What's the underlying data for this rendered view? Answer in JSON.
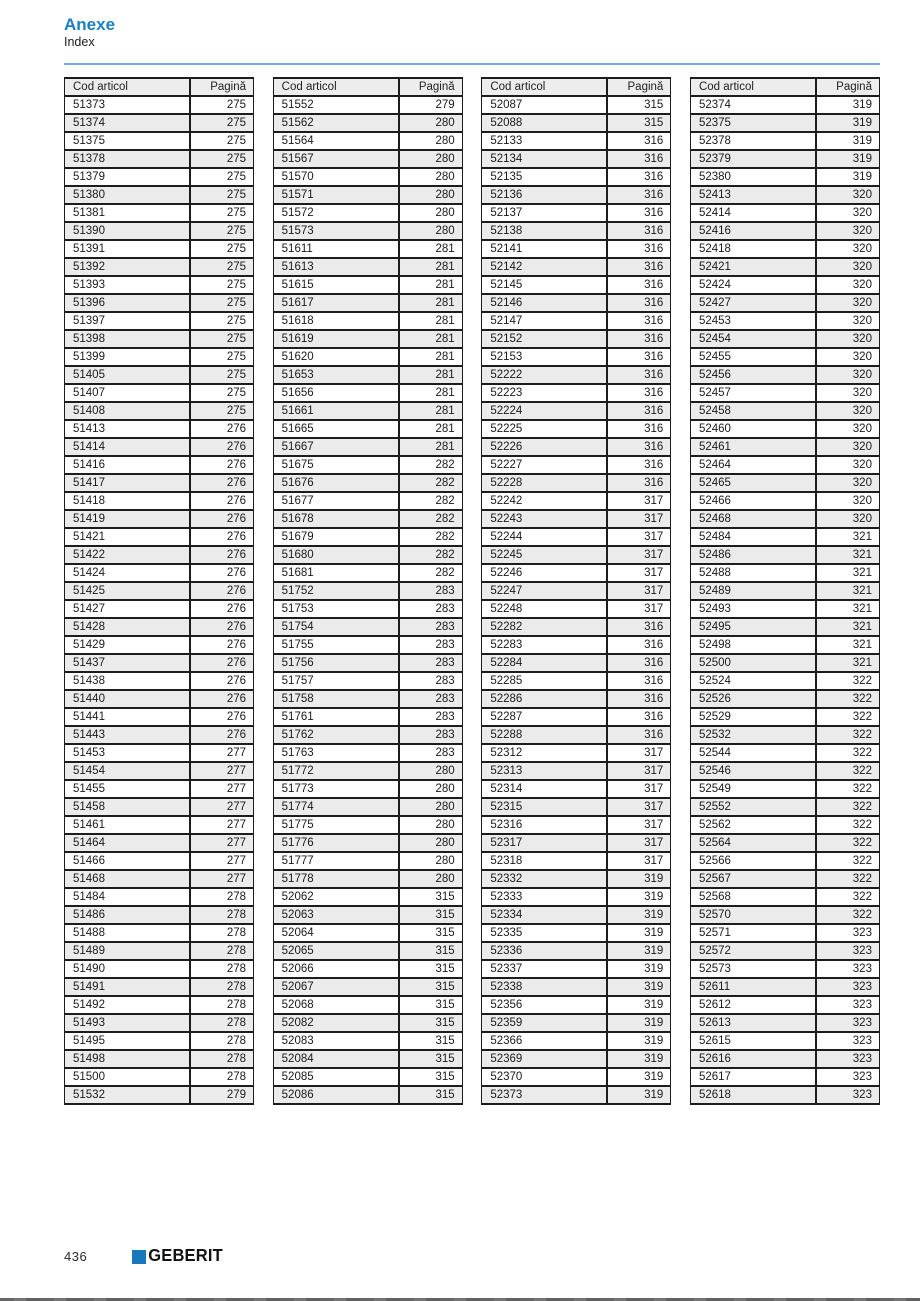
{
  "header": {
    "title": "Anexe",
    "subtitle": "Index"
  },
  "table_headers": {
    "code": "Cod articol",
    "page": "Pagină"
  },
  "tables": [
    {
      "rows": [
        [
          "51373",
          "275"
        ],
        [
          "51374",
          "275"
        ],
        [
          "51375",
          "275"
        ],
        [
          "51378",
          "275"
        ],
        [
          "51379",
          "275"
        ],
        [
          "51380",
          "275"
        ],
        [
          "51381",
          "275"
        ],
        [
          "51390",
          "275"
        ],
        [
          "51391",
          "275"
        ],
        [
          "51392",
          "275"
        ],
        [
          "51393",
          "275"
        ],
        [
          "51396",
          "275"
        ],
        [
          "51397",
          "275"
        ],
        [
          "51398",
          "275"
        ],
        [
          "51399",
          "275"
        ],
        [
          "51405",
          "275"
        ],
        [
          "51407",
          "275"
        ],
        [
          "51408",
          "275"
        ],
        [
          "51413",
          "276"
        ],
        [
          "51414",
          "276"
        ],
        [
          "51416",
          "276"
        ],
        [
          "51417",
          "276"
        ],
        [
          "51418",
          "276"
        ],
        [
          "51419",
          "276"
        ],
        [
          "51421",
          "276"
        ],
        [
          "51422",
          "276"
        ],
        [
          "51424",
          "276"
        ],
        [
          "51425",
          "276"
        ],
        [
          "51427",
          "276"
        ],
        [
          "51428",
          "276"
        ],
        [
          "51429",
          "276"
        ],
        [
          "51437",
          "276"
        ],
        [
          "51438",
          "276"
        ],
        [
          "51440",
          "276"
        ],
        [
          "51441",
          "276"
        ],
        [
          "51443",
          "276"
        ],
        [
          "51453",
          "277"
        ],
        [
          "51454",
          "277"
        ],
        [
          "51455",
          "277"
        ],
        [
          "51458",
          "277"
        ],
        [
          "51461",
          "277"
        ],
        [
          "51464",
          "277"
        ],
        [
          "51466",
          "277"
        ],
        [
          "51468",
          "277"
        ],
        [
          "51484",
          "278"
        ],
        [
          "51486",
          "278"
        ],
        [
          "51488",
          "278"
        ],
        [
          "51489",
          "278"
        ],
        [
          "51490",
          "278"
        ],
        [
          "51491",
          "278"
        ],
        [
          "51492",
          "278"
        ],
        [
          "51493",
          "278"
        ],
        [
          "51495",
          "278"
        ],
        [
          "51498",
          "278"
        ],
        [
          "51500",
          "278"
        ],
        [
          "51532",
          "279"
        ]
      ]
    },
    {
      "rows": [
        [
          "51552",
          "279"
        ],
        [
          "51562",
          "280"
        ],
        [
          "51564",
          "280"
        ],
        [
          "51567",
          "280"
        ],
        [
          "51570",
          "280"
        ],
        [
          "51571",
          "280"
        ],
        [
          "51572",
          "280"
        ],
        [
          "51573",
          "280"
        ],
        [
          "51611",
          "281"
        ],
        [
          "51613",
          "281"
        ],
        [
          "51615",
          "281"
        ],
        [
          "51617",
          "281"
        ],
        [
          "51618",
          "281"
        ],
        [
          "51619",
          "281"
        ],
        [
          "51620",
          "281"
        ],
        [
          "51653",
          "281"
        ],
        [
          "51656",
          "281"
        ],
        [
          "51661",
          "281"
        ],
        [
          "51665",
          "281"
        ],
        [
          "51667",
          "281"
        ],
        [
          "51675",
          "282"
        ],
        [
          "51676",
          "282"
        ],
        [
          "51677",
          "282"
        ],
        [
          "51678",
          "282"
        ],
        [
          "51679",
          "282"
        ],
        [
          "51680",
          "282"
        ],
        [
          "51681",
          "282"
        ],
        [
          "51752",
          "283"
        ],
        [
          "51753",
          "283"
        ],
        [
          "51754",
          "283"
        ],
        [
          "51755",
          "283"
        ],
        [
          "51756",
          "283"
        ],
        [
          "51757",
          "283"
        ],
        [
          "51758",
          "283"
        ],
        [
          "51761",
          "283"
        ],
        [
          "51762",
          "283"
        ],
        [
          "51763",
          "283"
        ],
        [
          "51772",
          "280"
        ],
        [
          "51773",
          "280"
        ],
        [
          "51774",
          "280"
        ],
        [
          "51775",
          "280"
        ],
        [
          "51776",
          "280"
        ],
        [
          "51777",
          "280"
        ],
        [
          "51778",
          "280"
        ],
        [
          "52062",
          "315"
        ],
        [
          "52063",
          "315"
        ],
        [
          "52064",
          "315"
        ],
        [
          "52065",
          "315"
        ],
        [
          "52066",
          "315"
        ],
        [
          "52067",
          "315"
        ],
        [
          "52068",
          "315"
        ],
        [
          "52082",
          "315"
        ],
        [
          "52083",
          "315"
        ],
        [
          "52084",
          "315"
        ],
        [
          "52085",
          "315"
        ],
        [
          "52086",
          "315"
        ]
      ]
    },
    {
      "rows": [
        [
          "52087",
          "315"
        ],
        [
          "52088",
          "315"
        ],
        [
          "52133",
          "316"
        ],
        [
          "52134",
          "316"
        ],
        [
          "52135",
          "316"
        ],
        [
          "52136",
          "316"
        ],
        [
          "52137",
          "316"
        ],
        [
          "52138",
          "316"
        ],
        [
          "52141",
          "316"
        ],
        [
          "52142",
          "316"
        ],
        [
          "52145",
          "316"
        ],
        [
          "52146",
          "316"
        ],
        [
          "52147",
          "316"
        ],
        [
          "52152",
          "316"
        ],
        [
          "52153",
          "316"
        ],
        [
          "52222",
          "316"
        ],
        [
          "52223",
          "316"
        ],
        [
          "52224",
          "316"
        ],
        [
          "52225",
          "316"
        ],
        [
          "52226",
          "316"
        ],
        [
          "52227",
          "316"
        ],
        [
          "52228",
          "316"
        ],
        [
          "52242",
          "317"
        ],
        [
          "52243",
          "317"
        ],
        [
          "52244",
          "317"
        ],
        [
          "52245",
          "317"
        ],
        [
          "52246",
          "317"
        ],
        [
          "52247",
          "317"
        ],
        [
          "52248",
          "317"
        ],
        [
          "52282",
          "316"
        ],
        [
          "52283",
          "316"
        ],
        [
          "52284",
          "316"
        ],
        [
          "52285",
          "316"
        ],
        [
          "52286",
          "316"
        ],
        [
          "52287",
          "316"
        ],
        [
          "52288",
          "316"
        ],
        [
          "52312",
          "317"
        ],
        [
          "52313",
          "317"
        ],
        [
          "52314",
          "317"
        ],
        [
          "52315",
          "317"
        ],
        [
          "52316",
          "317"
        ],
        [
          "52317",
          "317"
        ],
        [
          "52318",
          "317"
        ],
        [
          "52332",
          "319"
        ],
        [
          "52333",
          "319"
        ],
        [
          "52334",
          "319"
        ],
        [
          "52335",
          "319"
        ],
        [
          "52336",
          "319"
        ],
        [
          "52337",
          "319"
        ],
        [
          "52338",
          "319"
        ],
        [
          "52356",
          "319"
        ],
        [
          "52359",
          "319"
        ],
        [
          "52366",
          "319"
        ],
        [
          "52369",
          "319"
        ],
        [
          "52370",
          "319"
        ],
        [
          "52373",
          "319"
        ]
      ]
    },
    {
      "rows": [
        [
          "52374",
          "319"
        ],
        [
          "52375",
          "319"
        ],
        [
          "52378",
          "319"
        ],
        [
          "52379",
          "319"
        ],
        [
          "52380",
          "319"
        ],
        [
          "52413",
          "320"
        ],
        [
          "52414",
          "320"
        ],
        [
          "52416",
          "320"
        ],
        [
          "52418",
          "320"
        ],
        [
          "52421",
          "320"
        ],
        [
          "52424",
          "320"
        ],
        [
          "52427",
          "320"
        ],
        [
          "52453",
          "320"
        ],
        [
          "52454",
          "320"
        ],
        [
          "52455",
          "320"
        ],
        [
          "52456",
          "320"
        ],
        [
          "52457",
          "320"
        ],
        [
          "52458",
          "320"
        ],
        [
          "52460",
          "320"
        ],
        [
          "52461",
          "320"
        ],
        [
          "52464",
          "320"
        ],
        [
          "52465",
          "320"
        ],
        [
          "52466",
          "320"
        ],
        [
          "52468",
          "320"
        ],
        [
          "52484",
          "321"
        ],
        [
          "52486",
          "321"
        ],
        [
          "52488",
          "321"
        ],
        [
          "52489",
          "321"
        ],
        [
          "52493",
          "321"
        ],
        [
          "52495",
          "321"
        ],
        [
          "52498",
          "321"
        ],
        [
          "52500",
          "321"
        ],
        [
          "52524",
          "322"
        ],
        [
          "52526",
          "322"
        ],
        [
          "52529",
          "322"
        ],
        [
          "52532",
          "322"
        ],
        [
          "52544",
          "322"
        ],
        [
          "52546",
          "322"
        ],
        [
          "52549",
          "322"
        ],
        [
          "52552",
          "322"
        ],
        [
          "52562",
          "322"
        ],
        [
          "52564",
          "322"
        ],
        [
          "52566",
          "322"
        ],
        [
          "52567",
          "322"
        ],
        [
          "52568",
          "322"
        ],
        [
          "52570",
          "322"
        ],
        [
          "52571",
          "323"
        ],
        [
          "52572",
          "323"
        ],
        [
          "52573",
          "323"
        ],
        [
          "52611",
          "323"
        ],
        [
          "52612",
          "323"
        ],
        [
          "52613",
          "323"
        ],
        [
          "52615",
          "323"
        ],
        [
          "52616",
          "323"
        ],
        [
          "52617",
          "323"
        ],
        [
          "52618",
          "323"
        ]
      ]
    }
  ],
  "footer": {
    "page_number": "436",
    "brand": "GEBERIT"
  },
  "colors": {
    "accent_blue": "#1a80c2",
    "logo_blue": "#1878bc",
    "rule_blue": "#7aaed8"
  }
}
